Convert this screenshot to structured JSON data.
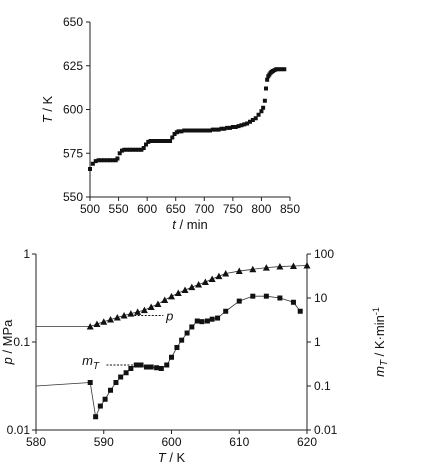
{
  "chart_data": [
    {
      "type": "scatter",
      "title": "",
      "xlabel": "t / min",
      "ylabel": "T / K",
      "xlim": [
        500,
        850
      ],
      "ylim": [
        550,
        650
      ],
      "xticks": [
        "500",
        "550",
        "600",
        "650",
        "700",
        "750",
        "800",
        "850"
      ],
      "yticks": [
        "550",
        "575",
        "600",
        "625",
        "650"
      ],
      "grid": false,
      "color": "#111111",
      "series": [
        {
          "x": [
            500,
            505,
            510,
            515,
            520,
            525,
            530,
            535,
            540,
            545,
            548,
            552,
            556,
            560,
            565,
            570,
            575,
            580,
            585,
            590,
            594,
            598,
            602,
            606,
            610,
            615,
            620,
            625,
            630,
            635,
            640,
            644,
            648,
            652,
            655,
            660,
            665,
            670,
            675,
            680,
            685,
            690,
            695,
            700,
            705,
            710,
            715,
            720,
            725,
            730,
            735,
            740,
            745,
            750,
            755,
            760,
            765,
            770,
            775,
            780,
            785,
            790,
            795,
            800,
            803,
            806,
            808,
            810,
            812,
            814,
            816,
            818,
            820,
            823,
            826,
            830,
            835,
            840
          ],
          "y": [
            566,
            569,
            570.5,
            571,
            571,
            571,
            571,
            571,
            571,
            571,
            572,
            575,
            576.5,
            577,
            577,
            577,
            577,
            577,
            577,
            577,
            578,
            580,
            581.5,
            582,
            582,
            582,
            582,
            582,
            582,
            582,
            582,
            584,
            586,
            587,
            587.5,
            587.5,
            588,
            588,
            588,
            588,
            588,
            588,
            588,
            588,
            588,
            588,
            588.5,
            588.5,
            588.5,
            589,
            589,
            589.5,
            589.5,
            590,
            590,
            590.5,
            591,
            591.5,
            592,
            593,
            594,
            595,
            597,
            599,
            601,
            605,
            612,
            617,
            619,
            620,
            621,
            621.5,
            622,
            622.5,
            623,
            623,
            623,
            623
          ]
        }
      ]
    },
    {
      "type": "line",
      "title": "",
      "xlabel": "T / K",
      "ylabel": "p / MPa",
      "y2label": "mT / K·min-1",
      "xlim": [
        580,
        620
      ],
      "ylim": [
        0.01,
        1
      ],
      "y2lim": [
        0.01,
        100
      ],
      "log_y": true,
      "log_y2": true,
      "xticks": [
        "580",
        "590",
        "600",
        "610",
        "620"
      ],
      "yticks": [
        "0.01",
        "0.1",
        "1"
      ],
      "y2ticks": [
        "0.01",
        "0.1",
        "1",
        "10",
        "100"
      ],
      "grid": false,
      "series": [
        {
          "name": "p",
          "marker": "triangle",
          "axis": "left",
          "prestart_value": 0.15,
          "x": [
            588,
            589,
            590,
            591,
            592,
            593,
            594,
            595,
            596,
            597,
            598,
            599,
            600,
            601,
            602,
            603,
            604,
            605,
            606,
            607,
            608,
            610,
            612,
            614,
            616,
            618,
            620
          ],
          "y": [
            0.15,
            0.16,
            0.17,
            0.18,
            0.19,
            0.2,
            0.21,
            0.22,
            0.23,
            0.25,
            0.27,
            0.3,
            0.33,
            0.36,
            0.39,
            0.42,
            0.45,
            0.48,
            0.52,
            0.56,
            0.6,
            0.64,
            0.67,
            0.7,
            0.72,
            0.73,
            0.74
          ]
        },
        {
          "name": "mT",
          "marker": "square",
          "axis": "right",
          "prestart_value": 0.1,
          "x": [
            588,
            588.8,
            589.5,
            590.2,
            591,
            591.8,
            592.5,
            593.3,
            594,
            594.8,
            595.5,
            596.3,
            597,
            597.8,
            598.5,
            599.3,
            600,
            600.8,
            601.5,
            602.3,
            603,
            603.8,
            604.5,
            605.3,
            606,
            606.8,
            608,
            610,
            612,
            614,
            616,
            618,
            619
          ],
          "y": [
            0.12,
            0.02,
            0.035,
            0.05,
            0.08,
            0.12,
            0.16,
            0.2,
            0.25,
            0.3,
            0.3,
            0.27,
            0.27,
            0.26,
            0.25,
            0.3,
            0.45,
            0.75,
            1.1,
            1.6,
            2.2,
            3.0,
            2.9,
            3.0,
            3.3,
            3.5,
            5.0,
            8.5,
            11,
            11,
            10,
            8,
            5
          ]
        }
      ],
      "annotations": [
        "p",
        "mT"
      ]
    }
  ]
}
